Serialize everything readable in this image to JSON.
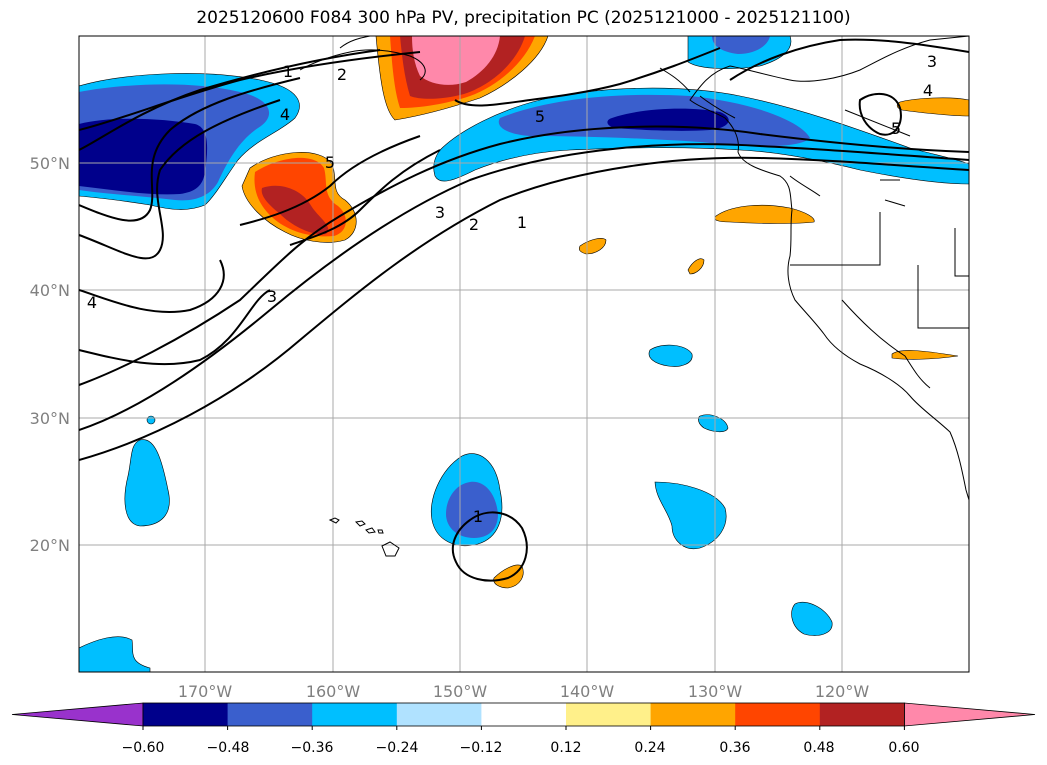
{
  "title": "2025120600 F084 300 hPa PV, precipitation PC (2025121000 - 2025121100)",
  "latitude_labels": [
    "50°N",
    "40°N",
    "30°N",
    "20°N"
  ],
  "longitude_labels": [
    "170°W",
    "160°W",
    "150°W",
    "140°W",
    "130°W",
    "120°W"
  ],
  "pv_contour_labels": [
    "1",
    "2",
    "3",
    "4",
    "5",
    "5",
    "4",
    "3",
    "2",
    "1",
    "3",
    "4",
    "3",
    "4",
    "5",
    "1"
  ],
  "colorbar": {
    "tick_labels": [
      "−0.60",
      "−0.48",
      "−0.36",
      "−0.24",
      "−0.12",
      "0.12",
      "0.24",
      "0.36",
      "0.48",
      "0.60"
    ],
    "colors": [
      "#9932cc",
      "#00008b",
      "#3a5fcd",
      "#00bfff",
      "#b0e2ff",
      "#ffffff",
      "#fff08a",
      "#ffa500",
      "#ff4500",
      "#b22222",
      "#ff88aa"
    ]
  },
  "fill_colors": {
    "deep_blue": "#00008b",
    "royal_blue": "#3a5fcd",
    "sky_blue": "#00bfff",
    "orange": "#ffa500",
    "red_orange": "#ff4500",
    "dark_red": "#b22222",
    "pink": "#ff88aa"
  }
}
